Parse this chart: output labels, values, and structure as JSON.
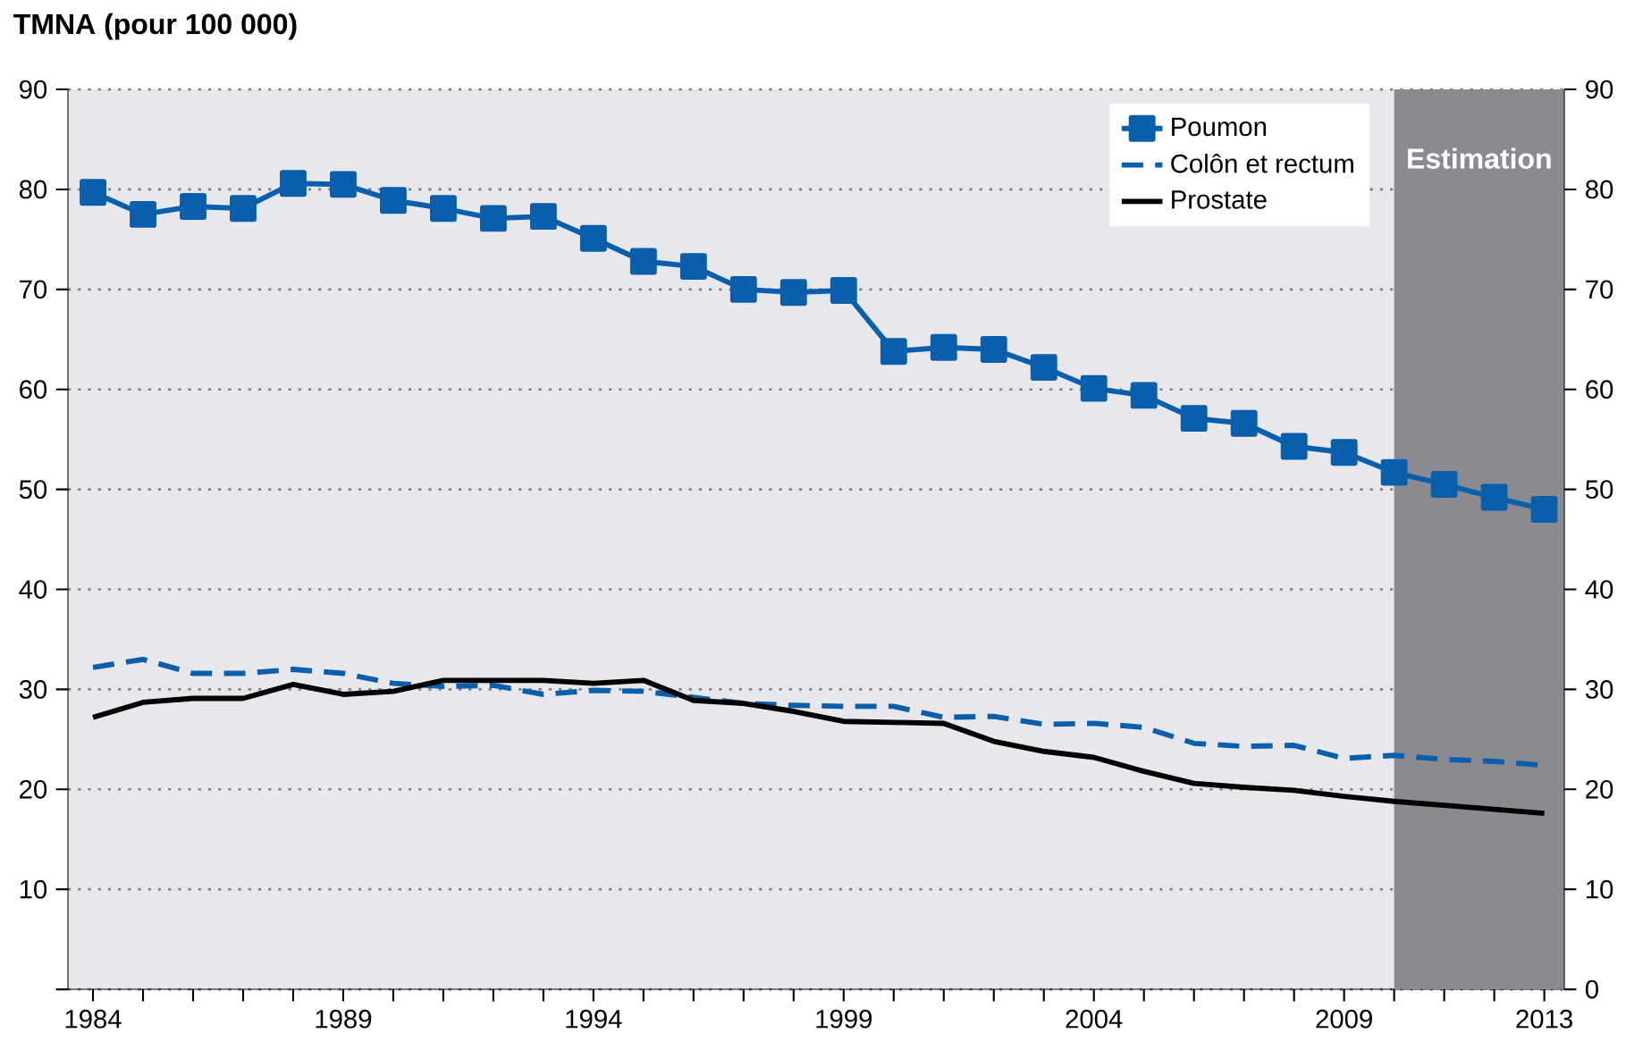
{
  "chart_data": {
    "type": "line",
    "ylabel": "TMNA (pour 100 000)",
    "x": [
      1984,
      1985,
      1986,
      1987,
      1988,
      1989,
      1990,
      1991,
      1992,
      1993,
      1994,
      1995,
      1996,
      1997,
      1998,
      1999,
      2000,
      2001,
      2002,
      2003,
      2004,
      2005,
      2006,
      2007,
      2008,
      2009,
      2010,
      2011,
      2012,
      2013
    ],
    "series": [
      {
        "name": "Poumon",
        "color": "#0a5fad",
        "marker": "square",
        "line_style": "solid",
        "values": [
          79.7,
          77.5,
          78.3,
          78.1,
          80.6,
          80.5,
          78.9,
          78.1,
          77.1,
          77.3,
          75.1,
          72.8,
          72.3,
          70.0,
          69.7,
          69.9,
          63.8,
          64.2,
          64.0,
          62.2,
          60.1,
          59.4,
          57.1,
          56.6,
          54.3,
          53.7,
          51.7,
          50.5,
          49.2,
          48.0
        ]
      },
      {
        "name": "Colôn et rectum",
        "color": "#0a5fad",
        "marker": "none",
        "line_style": "dashed",
        "values": [
          32.2,
          33.0,
          31.6,
          31.6,
          32.0,
          31.6,
          30.6,
          30.3,
          30.4,
          29.5,
          29.9,
          29.8,
          29.2,
          28.6,
          28.4,
          28.3,
          28.3,
          27.2,
          27.3,
          26.5,
          26.6,
          26.2,
          24.6,
          24.3,
          24.4,
          23.1,
          23.4,
          23.0,
          22.8,
          22.4
        ]
      },
      {
        "name": "Prostate",
        "color": "#000000",
        "marker": "none",
        "line_style": "solid",
        "values": [
          27.2,
          28.7,
          29.1,
          29.1,
          30.5,
          29.5,
          29.8,
          30.9,
          30.9,
          30.9,
          30.6,
          30.9,
          28.9,
          28.6,
          27.8,
          26.8,
          26.7,
          26.6,
          24.8,
          23.8,
          23.2,
          21.8,
          20.6,
          20.2,
          19.9,
          19.3,
          18.8,
          18.4,
          18.0,
          17.6
        ]
      }
    ],
    "xlim": [
      1983.5,
      2013.4
    ],
    "xticks": [
      1984,
      {
        "value": 1985,
        "label": null
      },
      {
        "value": 1986,
        "label": null
      },
      {
        "value": 1987,
        "label": null
      },
      {
        "value": 1988,
        "label": null
      },
      1989,
      {
        "value": 1990,
        "label": null
      },
      {
        "value": 1991,
        "label": null
      },
      {
        "value": 1992,
        "label": null
      },
      {
        "value": 1993,
        "label": null
      },
      1994,
      {
        "value": 1995,
        "label": null
      },
      {
        "value": 1996,
        "label": null
      },
      {
        "value": 1997,
        "label": null
      },
      {
        "value": 1998,
        "label": null
      },
      1999,
      {
        "value": 2000,
        "label": null
      },
      {
        "value": 2001,
        "label": null
      },
      {
        "value": 2002,
        "label": null
      },
      {
        "value": 2003,
        "label": null
      },
      2004,
      {
        "value": 2005,
        "label": null
      },
      {
        "value": 2006,
        "label": null
      },
      {
        "value": 2007,
        "label": null
      },
      {
        "value": 2008,
        "label": null
      },
      2009,
      {
        "value": 2010,
        "label": null
      },
      {
        "value": 2011,
        "label": null
      },
      {
        "value": 2012,
        "label": null
      },
      2013
    ],
    "ylim": [
      0,
      90
    ],
    "yticks": [
      {
        "value": 0,
        "label": null
      },
      10,
      20,
      30,
      40,
      50,
      60,
      70,
      80,
      90
    ],
    "y2lim": [
      0,
      90
    ],
    "y2ticks": [
      0,
      10,
      20,
      30,
      40,
      50,
      60,
      70,
      80,
      90
    ],
    "bands": [
      {
        "axis": "x",
        "from": 2010,
        "to": 2013.4,
        "label": "Estimation",
        "color": "#8a8a90"
      }
    ],
    "grid": "y",
    "legend": "top right"
  }
}
